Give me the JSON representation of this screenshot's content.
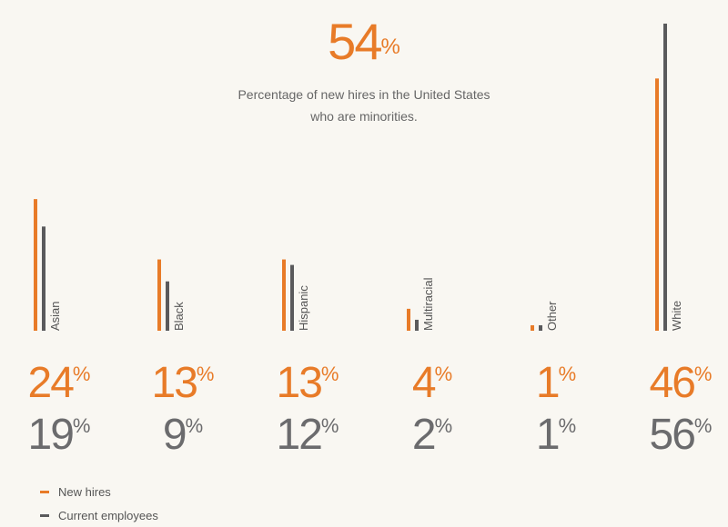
{
  "headline": {
    "value": "54",
    "unit": "%",
    "text": "Percentage of new hires in the United States who are minorities."
  },
  "colors": {
    "new_hires": "#e87b28",
    "current_employees": "#5a5a5c",
    "background": "#f9f7f2"
  },
  "chart_data": {
    "type": "bar",
    "categories": [
      "Asian",
      "Black",
      "Hispanic",
      "Multiracial",
      "Other",
      "White"
    ],
    "series": [
      {
        "name": "New hires",
        "values": [
          24,
          13,
          13,
          4,
          1,
          46
        ]
      },
      {
        "name": "Current employees",
        "values": [
          19,
          9,
          12,
          2,
          1,
          56
        ]
      }
    ],
    "value_labels": {
      "new_hires": [
        "24",
        "13",
        "13",
        "4",
        "1",
        "46"
      ],
      "current_employees": [
        "19",
        "9",
        "12",
        "2",
        "1",
        "56"
      ],
      "unit": "%"
    },
    "ylim": [
      0,
      56
    ],
    "legend_position": "bottom-left"
  },
  "legend": [
    {
      "label": "New hires",
      "color": "#e87b28"
    },
    {
      "label": "Current employees",
      "color": "#5a5a5c"
    }
  ]
}
